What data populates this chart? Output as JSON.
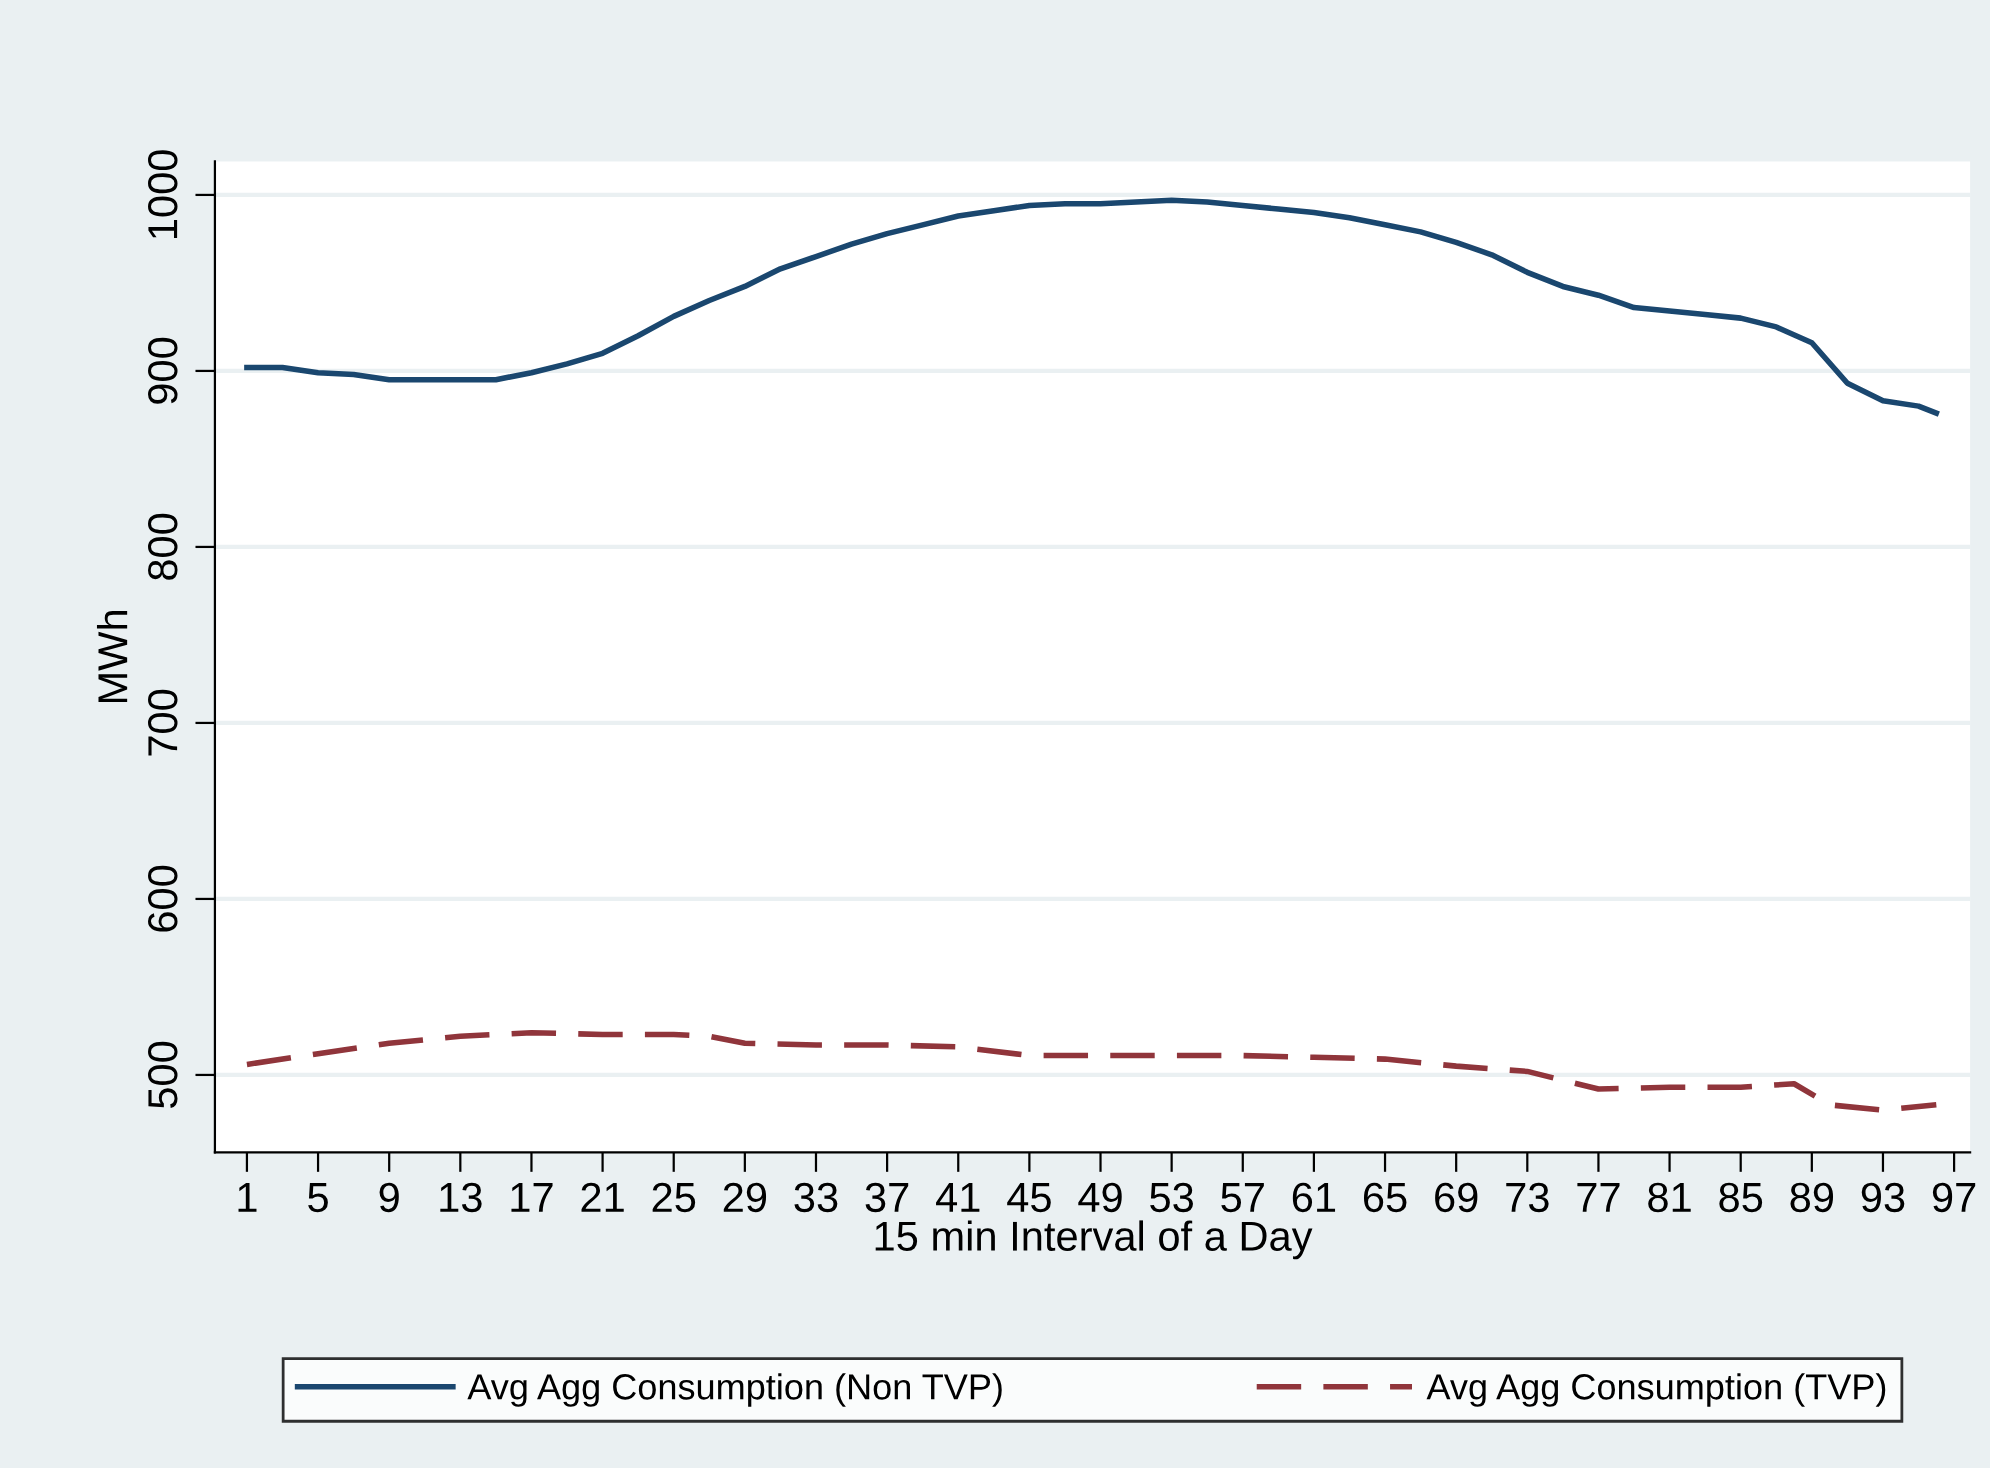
{
  "chart_data": {
    "type": "line",
    "xlabel": "15 min Interval of a Day",
    "ylabel": "MWh",
    "xlim": [
      -0.8,
      97.9
    ],
    "xticks": [
      1,
      5,
      9,
      13,
      17,
      21,
      25,
      29,
      33,
      37,
      41,
      45,
      49,
      53,
      57,
      61,
      65,
      69,
      73,
      77,
      81,
      85,
      89,
      93,
      97
    ],
    "ylim": [
      456,
      1019
    ],
    "yticks": [
      500,
      600,
      700,
      800,
      900,
      1000
    ],
    "grid": "y",
    "legend": "bottom",
    "series": [
      {
        "name": "Avg Agg Consumption (Non TVP)",
        "color": "#1a476f",
        "line_style": "solid",
        "x": [
          1,
          3,
          5,
          7,
          9,
          11,
          13,
          15,
          17,
          19,
          21,
          23,
          25,
          27,
          29,
          31,
          33,
          35,
          37,
          39,
          41,
          43,
          45,
          47,
          49,
          51,
          53,
          55,
          57,
          59,
          61,
          63,
          65,
          67,
          69,
          71,
          73,
          75,
          77,
          79,
          81,
          83,
          85,
          87,
          89,
          91,
          93,
          95,
          96
        ],
        "values": [
          902,
          902,
          899,
          898,
          895,
          895,
          895,
          895,
          899,
          904,
          910,
          920,
          931,
          940,
          948,
          958,
          965,
          972,
          978,
          983,
          988,
          991,
          994,
          995,
          995,
          996,
          997,
          996,
          994,
          992,
          990,
          987,
          983,
          979,
          973,
          966,
          956,
          948,
          943,
          936,
          934,
          932,
          930,
          925,
          916,
          893,
          883,
          880,
          876
        ]
      },
      {
        "name": "Avg Agg Consumption (TVP)",
        "color": "#90353b",
        "line_style": "dashed",
        "x": [
          1,
          5,
          9,
          13,
          17,
          21,
          25,
          27,
          29,
          33,
          37,
          41,
          45,
          49,
          53,
          57,
          61,
          65,
          69,
          73,
          75,
          77,
          81,
          85,
          88,
          90,
          93,
          96
        ],
        "values": [
          506,
          512,
          518,
          522,
          524,
          523,
          523,
          522,
          518,
          517,
          517,
          516,
          511,
          511,
          511,
          511,
          510,
          509,
          505,
          502,
          497,
          492,
          493,
          493,
          495,
          483,
          480,
          483
        ]
      }
    ]
  }
}
